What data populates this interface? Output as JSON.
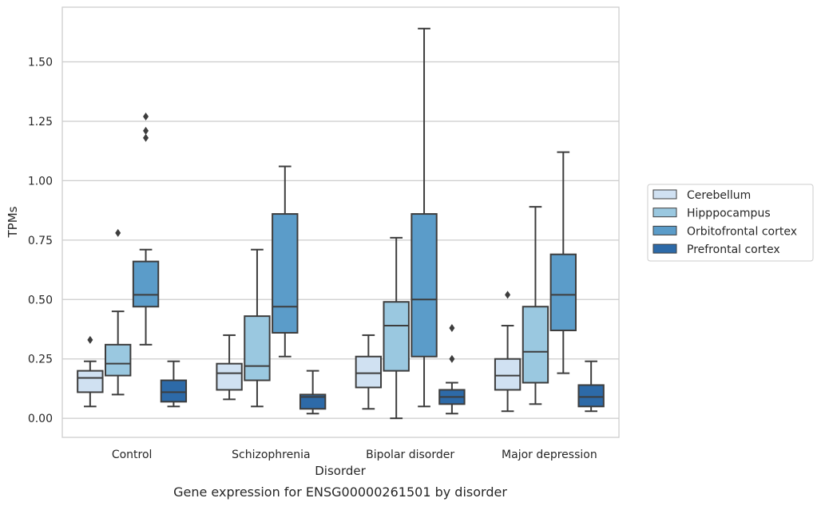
{
  "chart_data": {
    "type": "box",
    "xlabel": "Disorder",
    "ylabel": "TPMs",
    "caption": "Gene expression for ENSG00000261501 by disorder",
    "ylim": [
      -0.08,
      1.73
    ],
    "yticks": [
      "0.00",
      "0.25",
      "0.50",
      "0.75",
      "1.00",
      "1.25",
      "1.50"
    ],
    "grid": "horizontal",
    "legend_position": "right",
    "categories": [
      "Control",
      "Schizophrenia",
      "Bipolar disorder",
      "Major depression"
    ],
    "series": [
      {
        "name": "Cerebellum",
        "color": "#d0e1f2",
        "boxes": [
          {
            "whislo": 0.05,
            "q1": 0.11,
            "med": 0.17,
            "q3": 0.2,
            "whishi": 0.24,
            "fliers": [
              0.33
            ]
          },
          {
            "whislo": 0.08,
            "q1": 0.12,
            "med": 0.19,
            "q3": 0.23,
            "whishi": 0.35,
            "fliers": []
          },
          {
            "whislo": 0.04,
            "q1": 0.13,
            "med": 0.19,
            "q3": 0.26,
            "whishi": 0.35,
            "fliers": []
          },
          {
            "whislo": 0.03,
            "q1": 0.12,
            "med": 0.18,
            "q3": 0.25,
            "whishi": 0.39,
            "fliers": [
              0.52
            ]
          }
        ]
      },
      {
        "name": "Hipppocampus",
        "color": "#9ac8e0",
        "boxes": [
          {
            "whislo": 0.1,
            "q1": 0.18,
            "med": 0.23,
            "q3": 0.31,
            "whishi": 0.45,
            "fliers": [
              0.78
            ]
          },
          {
            "whislo": 0.05,
            "q1": 0.16,
            "med": 0.22,
            "q3": 0.43,
            "whishi": 0.71,
            "fliers": []
          },
          {
            "whislo": 0.0,
            "q1": 0.2,
            "med": 0.39,
            "q3": 0.49,
            "whishi": 0.76,
            "fliers": []
          },
          {
            "whislo": 0.06,
            "q1": 0.15,
            "med": 0.28,
            "q3": 0.47,
            "whishi": 0.89,
            "fliers": []
          }
        ]
      },
      {
        "name": "Orbitofrontal cortex",
        "color": "#5b9cc9",
        "boxes": [
          {
            "whislo": 0.31,
            "q1": 0.47,
            "med": 0.52,
            "q3": 0.66,
            "whishi": 0.71,
            "fliers": [
              1.18,
              1.21,
              1.27
            ]
          },
          {
            "whislo": 0.26,
            "q1": 0.36,
            "med": 0.47,
            "q3": 0.86,
            "whishi": 1.06,
            "fliers": []
          },
          {
            "whislo": 0.05,
            "q1": 0.26,
            "med": 0.5,
            "q3": 0.86,
            "whishi": 1.64,
            "fliers": []
          },
          {
            "whislo": 0.19,
            "q1": 0.37,
            "med": 0.52,
            "q3": 0.69,
            "whishi": 1.12,
            "fliers": []
          }
        ]
      },
      {
        "name": "Prefrontal cortex",
        "color": "#2d6aa8",
        "boxes": [
          {
            "whislo": 0.05,
            "q1": 0.07,
            "med": 0.11,
            "q3": 0.16,
            "whishi": 0.24,
            "fliers": []
          },
          {
            "whislo": 0.02,
            "q1": 0.04,
            "med": 0.09,
            "q3": 0.1,
            "whishi": 0.2,
            "fliers": []
          },
          {
            "whislo": 0.02,
            "q1": 0.06,
            "med": 0.09,
            "q3": 0.12,
            "whishi": 0.15,
            "fliers": [
              0.25,
              0.38
            ]
          },
          {
            "whislo": 0.03,
            "q1": 0.05,
            "med": 0.09,
            "q3": 0.14,
            "whishi": 0.24,
            "fliers": []
          }
        ]
      }
    ]
  }
}
